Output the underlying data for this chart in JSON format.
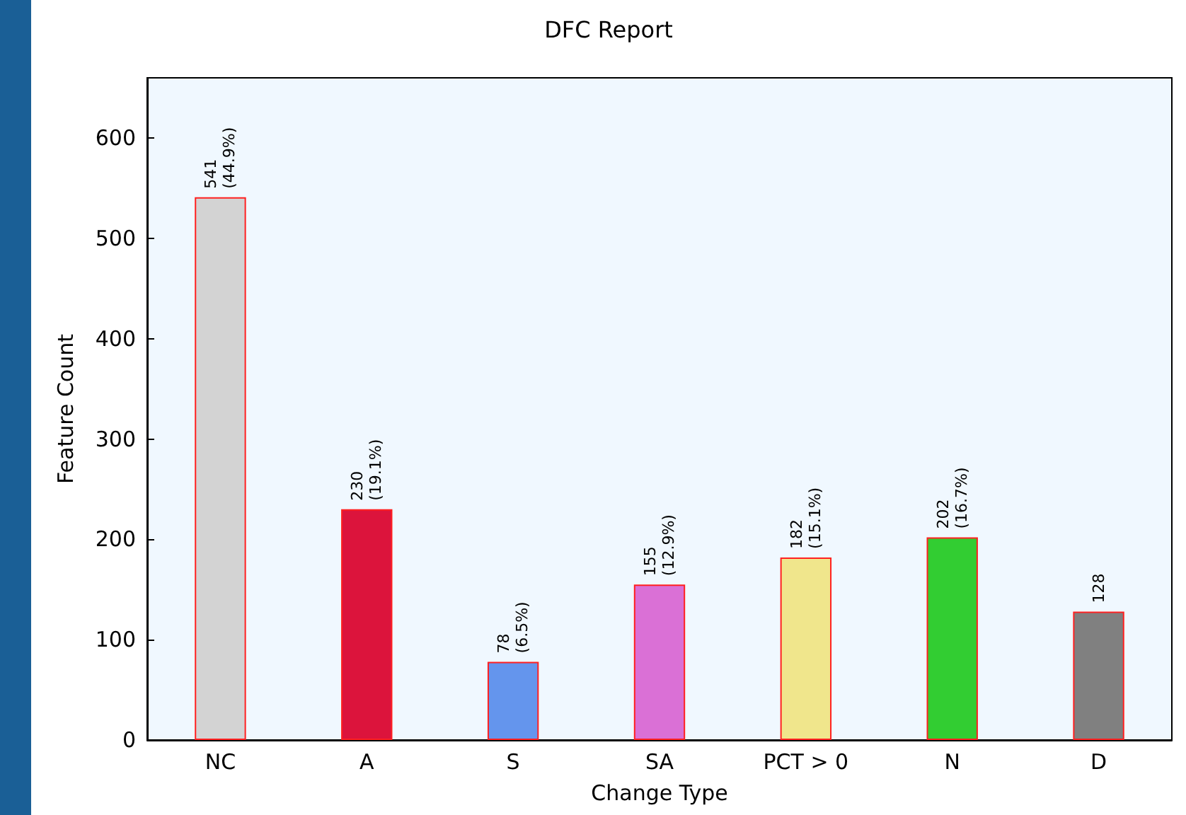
{
  "chart_data": {
    "type": "bar",
    "title": "DFC Report",
    "xlabel": "Change Type",
    "ylabel": "Feature Count",
    "categories": [
      "NC",
      "A",
      "S",
      "SA",
      "PCT > 0",
      "N",
      "D"
    ],
    "values": [
      541,
      230,
      78,
      155,
      182,
      202,
      128
    ],
    "colors": [
      "#d3d3d3",
      "#dc143c",
      "#6495ed",
      "#da70d6",
      "#f0e68c",
      "#32cd32",
      "#808080"
    ],
    "value_labels": [
      "541\n(44.9%)",
      "230\n(19.1%)",
      "78\n(6.5%)",
      "155\n(12.9%)",
      "182\n(15.1%)",
      "202\n(16.7%)",
      "128"
    ],
    "ylim": [
      0,
      660
    ],
    "yticks": [
      0,
      100,
      200,
      300,
      400,
      500,
      600
    ]
  }
}
